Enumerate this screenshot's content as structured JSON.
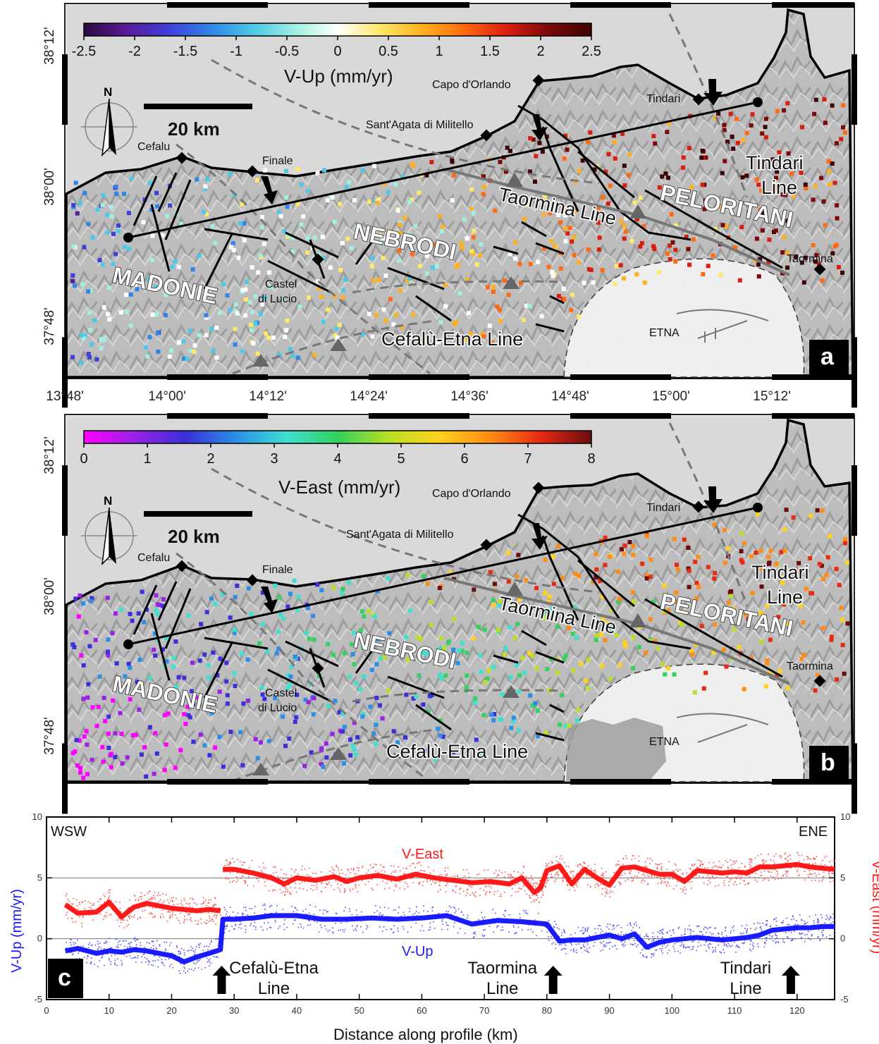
{
  "panel_a": {
    "badge": "a",
    "colorbar": {
      "title": "V-Up (mm/yr)",
      "ticks": [
        "-2.5",
        "-2",
        "-1.5",
        "-1",
        "-0.5",
        "0",
        "0.5",
        "1",
        "1.5",
        "2",
        "2.5"
      ],
      "colors": [
        "#2a0a3f",
        "#5b1b9a",
        "#3f3fd8",
        "#2f86e6",
        "#4cc9e8",
        "#9ff0e0",
        "#ffffff",
        "#ffe86a",
        "#ffb020",
        "#ff6a10",
        "#d81e10",
        "#7a0a0a",
        "#3d0505"
      ]
    }
  },
  "panel_b": {
    "badge": "b",
    "colorbar": {
      "title": "V-East (mm/yr)",
      "ticks": [
        "0",
        "1",
        "2",
        "3",
        "4",
        "5",
        "6",
        "7",
        "8"
      ],
      "colors": [
        "#ff00ff",
        "#9a22e6",
        "#3a2fd8",
        "#2c8ee6",
        "#3ee0d0",
        "#34d060",
        "#b8e024",
        "#ffd21c",
        "#ff8c14",
        "#e62a14",
        "#6a0c0c"
      ]
    }
  },
  "map": {
    "x_ticks": [
      "13°48'",
      "14°00'",
      "14°12'",
      "14°24'",
      "14°36'",
      "14°48'",
      "15°00'",
      "15°12'"
    ],
    "y_ticks": [
      "38°12'",
      "38°00'",
      "37°48'"
    ],
    "scale_label": "20 km",
    "north_label": "N",
    "places": {
      "capo": "Capo d'Orlando",
      "sant_agata": "Sant'Agata di Militello",
      "cefalu": "Cefalu",
      "finale": "Finale",
      "tindari": "Tindari",
      "taormina": "Taormina",
      "castel1": "Castel",
      "castel2": "di Lucio",
      "etna": "ETNA"
    },
    "regions": {
      "madonie": "MADONIE",
      "nebrodi": "NEBRODI",
      "peloritani": "PELORITANI"
    },
    "lines": {
      "taormina": "Taormina Line",
      "tindari1": "Tindari",
      "tindari2": "Line",
      "cefalu_etna": "Cefalù-Etna Line"
    }
  },
  "profile": {
    "badge": "c",
    "wsw": "WSW",
    "ene": "ENE",
    "left_axis": "V-Up (mm/yr)",
    "right_axis": "V-East (mm/yr)",
    "xlabel": "Distance along profile (km)",
    "label_veast": "V-East",
    "label_vup": "V-Up",
    "arrows": [
      {
        "label1": "Cefalù-Etna",
        "label2": "Line",
        "km": 28
      },
      {
        "label1": "Taormina",
        "label2": "Line",
        "km": 81
      },
      {
        "label1": "Tindari",
        "label2": "Line",
        "km": 119
      }
    ]
  },
  "chart_data": {
    "type": "line",
    "xlabel": "Distance along profile (km)",
    "ylabel": "V-Up (mm/yr)",
    "y2label": "V-East (mm/yr)",
    "xlim": [
      0,
      126
    ],
    "ylim": [
      -5,
      10
    ],
    "y2lim": [
      -5,
      10
    ],
    "x_ticks": [
      0,
      10,
      20,
      30,
      40,
      50,
      60,
      70,
      80,
      90,
      100,
      110,
      120
    ],
    "y_ticks": [
      -5,
      0,
      5,
      10
    ],
    "grid": "horizontal lines at 0 and 5",
    "series": [
      {
        "name": "V-East",
        "color": "#ff1a1a",
        "x": [
          3,
          5,
          8,
          10,
          12,
          14,
          16,
          18,
          20,
          22,
          24,
          26,
          27.8,
          28.2,
          30,
          33,
          36,
          38,
          40,
          43,
          46,
          48,
          50,
          53,
          56,
          59,
          62,
          65,
          68,
          71,
          74,
          76,
          78,
          79,
          80,
          82,
          84,
          86,
          88,
          90,
          92,
          94,
          96,
          98,
          100,
          102,
          104,
          106,
          108,
          110,
          112,
          114,
          116,
          118,
          120,
          122,
          124,
          126
        ],
        "values": [
          2.8,
          2.1,
          2.2,
          3.0,
          1.8,
          2.6,
          2.9,
          2.7,
          2.5,
          2.4,
          2.3,
          2.4,
          2.3,
          5.7,
          5.7,
          5.4,
          5.0,
          4.5,
          5.0,
          4.8,
          5.1,
          4.7,
          5.0,
          5.2,
          4.9,
          5.3,
          5.0,
          4.8,
          4.6,
          4.7,
          4.5,
          5.0,
          3.8,
          4.2,
          5.6,
          6.0,
          4.5,
          5.7,
          5.0,
          4.4,
          5.8,
          5.9,
          5.6,
          5.3,
          5.3,
          4.7,
          5.6,
          5.5,
          5.4,
          5.5,
          5.4,
          5.9,
          5.9,
          6.0,
          6.1,
          5.9,
          5.8,
          5.7
        ]
      },
      {
        "name": "V-Up",
        "color": "#1a1aff",
        "x": [
          3,
          5,
          8,
          10,
          12,
          14,
          16,
          18,
          20,
          22,
          24,
          26,
          27.8,
          28.2,
          30,
          33,
          36,
          40,
          44,
          48,
          52,
          56,
          60,
          64,
          68,
          72,
          76,
          80,
          82,
          84,
          86,
          88,
          90,
          92,
          94,
          96,
          98,
          100,
          102,
          104,
          106,
          108,
          110,
          112,
          114,
          116,
          118,
          120,
          122,
          124,
          126
        ],
        "values": [
          -1.0,
          -0.8,
          -1.2,
          -1.0,
          -1.1,
          -0.9,
          -1.0,
          -1.2,
          -1.4,
          -1.9,
          -1.5,
          -1.2,
          -0.9,
          1.6,
          1.6,
          1.7,
          1.9,
          1.9,
          1.6,
          1.6,
          1.7,
          1.6,
          1.7,
          1.9,
          1.2,
          1.5,
          1.4,
          1.2,
          -0.2,
          -0.1,
          -0.1,
          0.1,
          0.3,
          0.0,
          0.4,
          -0.7,
          -0.3,
          -0.1,
          0.0,
          0.1,
          0.0,
          -0.1,
          0.0,
          0.1,
          0.3,
          0.7,
          0.8,
          0.9,
          0.9,
          1.0,
          1.0
        ]
      }
    ]
  }
}
